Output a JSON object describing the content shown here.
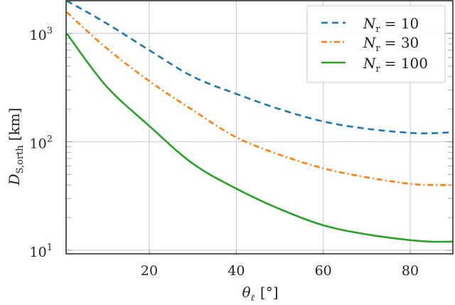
{
  "chart_data": {
    "type": "line",
    "title": "",
    "xlabel": "θ_ℓ [°]",
    "ylabel": "D_S,orth [km]",
    "xlim": [
      1,
      90
    ],
    "ylim": [
      9.4,
      2000
    ],
    "yscale": "log",
    "grid": true,
    "legend_position": "upper right",
    "x_ticks": [
      20,
      40,
      60,
      80
    ],
    "y_ticks": [
      {
        "value": 10,
        "label": "10",
        "exp": "1"
      },
      {
        "value": 100,
        "label": "10",
        "exp": "2"
      },
      {
        "value": 1000,
        "label": "10",
        "exp": "3"
      }
    ],
    "x": [
      1,
      10,
      20,
      30,
      40,
      50,
      60,
      70,
      80,
      85,
      90
    ],
    "series": [
      {
        "name": "N_r = 10",
        "legend_main": "N",
        "legend_sub": "r",
        "legend_value": "= 10",
        "color": "#1f77b4",
        "dash": "9,6",
        "values": [
          2000,
          1250,
          700,
          400,
          277,
          200,
          154,
          132,
          121,
          120,
          123
        ]
      },
      {
        "name": "N_r = 30",
        "legend_main": "N",
        "legend_sub": "r",
        "legend_value": "= 30",
        "color": "#ff7f0e",
        "dash": "8,4,2,4",
        "values": [
          1570,
          740,
          363,
          196,
          110,
          76,
          57,
          47,
          41,
          40,
          40
        ]
      },
      {
        "name": "N_r = 100",
        "legend_main": "N",
        "legend_sub": "r",
        "legend_value": "= 100",
        "color": "#2ca02c",
        "dash": "",
        "values": [
          1000,
          330,
          140,
          63,
          37,
          24,
          17,
          14,
          12.4,
          12,
          12
        ]
      }
    ]
  },
  "axes": {
    "xlabel_main": "θ",
    "xlabel_sub": "ℓ",
    "xlabel_unit": "[°]",
    "ylabel_main": "D",
    "ylabel_sub": "S,orth",
    "ylabel_unit": "[km]"
  }
}
